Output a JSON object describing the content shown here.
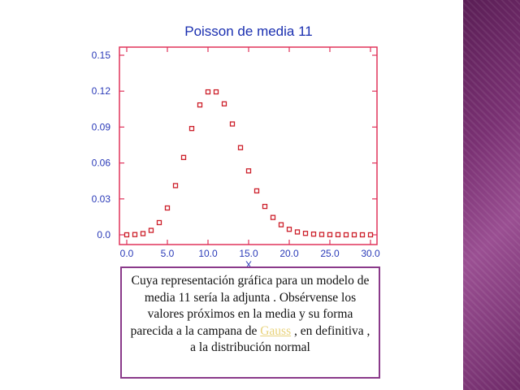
{
  "chart_data": {
    "type": "scatter",
    "title": "Poisson de media 11",
    "xlabel": "X",
    "ylabel": "",
    "xlim": [
      0,
      30
    ],
    "ylim": [
      0,
      0.15
    ],
    "x_ticks": [
      "0.0",
      "5.0",
      "10.0",
      "15.0",
      "20.0",
      "25.0",
      "30.0"
    ],
    "y_ticks": [
      "0.0",
      "0.03",
      "0.06",
      "0.09",
      "0.12",
      "0.15"
    ],
    "grid": false,
    "marker_color": "#cc1f2a",
    "axis_label_color": "#2a3ab8",
    "frame_color": "#e0335a",
    "points": [
      {
        "x": 0,
        "y": 0.0
      },
      {
        "x": 1,
        "y": 0.0002
      },
      {
        "x": 2,
        "y": 0.001
      },
      {
        "x": 3,
        "y": 0.0037
      },
      {
        "x": 4,
        "y": 0.0102
      },
      {
        "x": 5,
        "y": 0.0224
      },
      {
        "x": 6,
        "y": 0.0411
      },
      {
        "x": 7,
        "y": 0.0646
      },
      {
        "x": 8,
        "y": 0.0888
      },
      {
        "x": 9,
        "y": 0.1085
      },
      {
        "x": 10,
        "y": 0.1194
      },
      {
        "x": 11,
        "y": 0.1194
      },
      {
        "x": 12,
        "y": 0.1094
      },
      {
        "x": 13,
        "y": 0.0926
      },
      {
        "x": 14,
        "y": 0.0728
      },
      {
        "x": 15,
        "y": 0.0534
      },
      {
        "x": 16,
        "y": 0.0367
      },
      {
        "x": 17,
        "y": 0.0237
      },
      {
        "x": 18,
        "y": 0.0145
      },
      {
        "x": 19,
        "y": 0.0084
      },
      {
        "x": 20,
        "y": 0.0046
      },
      {
        "x": 21,
        "y": 0.0024
      },
      {
        "x": 22,
        "y": 0.0012
      },
      {
        "x": 23,
        "y": 0.0006
      },
      {
        "x": 24,
        "y": 0.0003
      },
      {
        "x": 25,
        "y": 0.0001
      },
      {
        "x": 26,
        "y": 0.0001
      },
      {
        "x": 27,
        "y": 0.0
      },
      {
        "x": 28,
        "y": 0.0
      },
      {
        "x": 29,
        "y": 0.0
      },
      {
        "x": 30,
        "y": 0.0
      }
    ]
  },
  "caption": {
    "text_before_link": "Cuya representación gráfica para un modelo de media 11 sería la adjunta . Obsérvense los valores próximos en la media y su forma parecida a la campana de ",
    "link_text": "Gauss",
    "link_color": "#e8d27a",
    "text_after_link": " , en definitiva , a la distribución normal",
    "border_color": "#8a3a8a"
  },
  "decor": {
    "sidebar_color": "#7a3173"
  }
}
